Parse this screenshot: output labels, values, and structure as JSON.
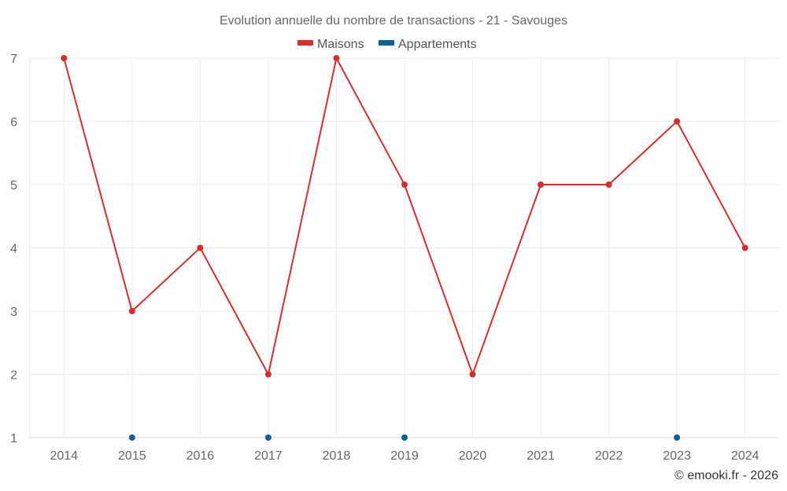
{
  "chart_data": {
    "type": "line",
    "title": "Evolution annuelle du nombre de transactions - 21 - Savouges",
    "categories": [
      "2014",
      "2015",
      "2016",
      "2017",
      "2018",
      "2019",
      "2020",
      "2021",
      "2022",
      "2023",
      "2024"
    ],
    "series": [
      {
        "name": "Maisons",
        "color": "#d32f2f",
        "values": [
          7,
          3,
          4,
          2,
          7,
          5,
          2,
          5,
          5,
          6,
          4
        ],
        "line": true
      },
      {
        "name": "Appartements",
        "color": "#0a6296",
        "values": [
          null,
          1,
          null,
          1,
          null,
          1,
          null,
          null,
          null,
          1,
          null
        ],
        "line": false
      }
    ],
    "ylim": [
      1,
      7
    ],
    "yticks": [
      "1",
      "2",
      "3",
      "4",
      "5",
      "6",
      "7"
    ],
    "xlabel": "",
    "ylabel": "",
    "grid": true,
    "legend": "top-center"
  },
  "credit": "© emooki.fr - 2026"
}
